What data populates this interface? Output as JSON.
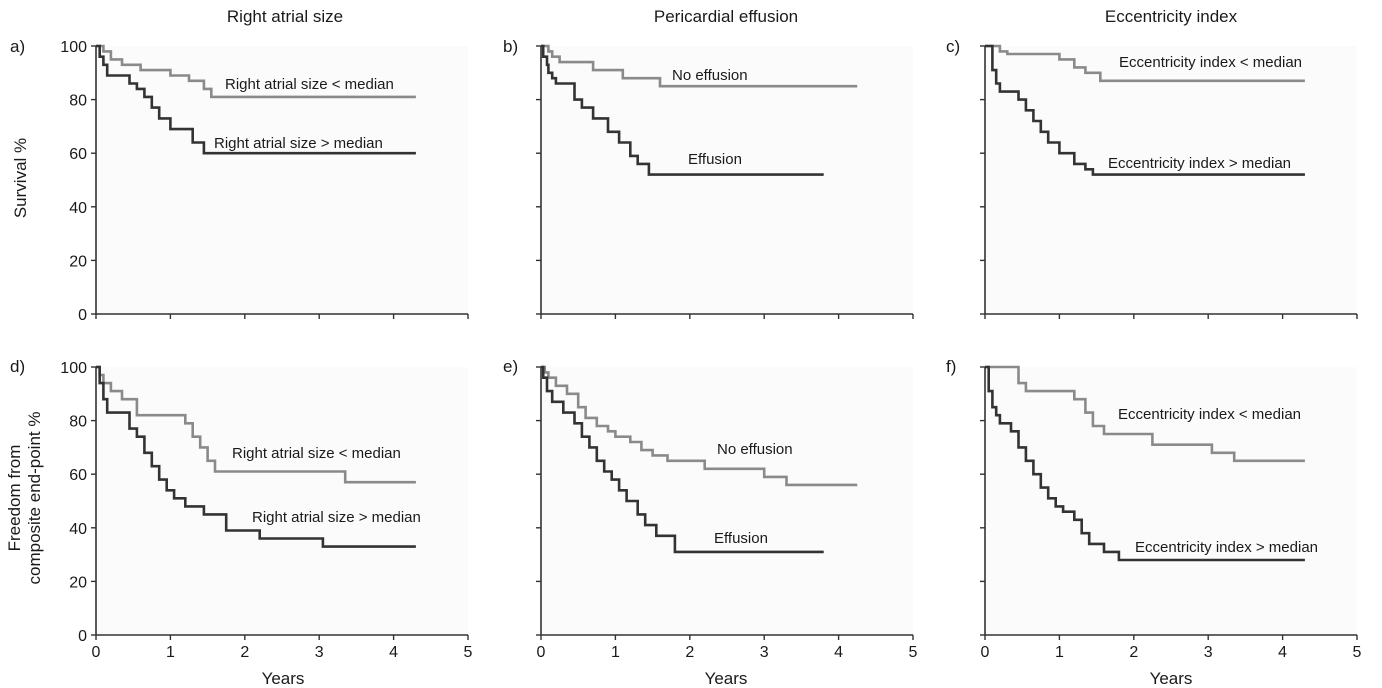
{
  "column_titles": [
    "Right atrial size",
    "Pericardial effusion",
    "Eccentricity index"
  ],
  "row_ylabels": [
    [
      "Survival %"
    ],
    [
      "Freedom from",
      "composite end-point %"
    ]
  ],
  "xlabel": "Years",
  "colors": {
    "median_low": "#8a8a8a",
    "median_high": "#333333",
    "axis": "#333333"
  },
  "chart_data": [
    {
      "type": "line",
      "panel": "a)",
      "row": 0,
      "col": 0,
      "xlim": [
        0,
        5
      ],
      "ylim": [
        0,
        100
      ],
      "xticks": [
        "0",
        "1",
        "2",
        "3",
        "4",
        "5"
      ],
      "yticks": [
        "0",
        "20",
        "40",
        "60",
        "80",
        "100"
      ],
      "show_yticklabels": true,
      "show_xticklabels": false,
      "series": [
        {
          "name": "Right atrial size < median",
          "color_key": "median_low",
          "x": [
            0,
            0.1,
            0.2,
            0.35,
            0.6,
            1.0,
            1.25,
            1.45,
            1.55,
            4.3
          ],
          "y": [
            100,
            98,
            95,
            93,
            91,
            89,
            87,
            84,
            81,
            81
          ]
        },
        {
          "name": "Right atrial size > median",
          "color_key": "median_high",
          "x": [
            0,
            0.05,
            0.1,
            0.15,
            0.25,
            0.45,
            0.55,
            0.65,
            0.75,
            0.85,
            1.0,
            1.3,
            1.45,
            4.3
          ],
          "y": [
            100,
            96,
            93,
            89,
            89,
            86,
            84,
            81,
            77,
            73,
            69,
            64,
            60,
            60
          ]
        }
      ]
    },
    {
      "type": "line",
      "panel": "b)",
      "row": 0,
      "col": 1,
      "xlim": [
        0,
        5
      ],
      "ylim": [
        0,
        100
      ],
      "xticks": [
        "0",
        "1",
        "2",
        "3",
        "4",
        "5"
      ],
      "yticks": [
        "0",
        "20",
        "40",
        "60",
        "80",
        "100"
      ],
      "show_yticklabels": false,
      "show_xticklabels": false,
      "series": [
        {
          "name": "No effusion",
          "color_key": "median_low",
          "x": [
            0,
            0.1,
            0.15,
            0.25,
            0.7,
            1.1,
            1.6,
            4.25
          ],
          "y": [
            100,
            98,
            96,
            94,
            91,
            88,
            85,
            85
          ]
        },
        {
          "name": "Effusion",
          "color_key": "median_high",
          "x": [
            0,
            0.03,
            0.08,
            0.1,
            0.15,
            0.2,
            0.45,
            0.55,
            0.7,
            0.9,
            1.05,
            1.2,
            1.3,
            1.45,
            3.8
          ],
          "y": [
            100,
            96,
            93,
            90,
            88,
            86,
            80,
            77,
            73,
            68,
            64,
            59,
            56,
            52,
            52
          ]
        }
      ]
    },
    {
      "type": "line",
      "panel": "c)",
      "row": 0,
      "col": 2,
      "xlim": [
        0,
        5
      ],
      "ylim": [
        0,
        100
      ],
      "xticks": [
        "0",
        "1",
        "2",
        "3",
        "4",
        "5"
      ],
      "yticks": [
        "0",
        "20",
        "40",
        "60",
        "80",
        "100"
      ],
      "show_yticklabels": false,
      "show_xticklabels": false,
      "series": [
        {
          "name": "Eccentricity index < median",
          "color_key": "median_low",
          "x": [
            0,
            0.2,
            0.3,
            1.0,
            1.2,
            1.35,
            1.55,
            4.3
          ],
          "y": [
            100,
            98,
            97,
            95,
            92,
            90,
            87,
            87
          ]
        },
        {
          "name": "Eccentricity index > median",
          "color_key": "median_high",
          "x": [
            0,
            0.1,
            0.15,
            0.2,
            0.35,
            0.45,
            0.55,
            0.65,
            0.75,
            0.85,
            1.0,
            1.2,
            1.35,
            1.45,
            4.3
          ],
          "y": [
            100,
            91,
            86,
            83,
            83,
            80,
            76,
            72,
            68,
            64,
            60,
            56,
            54,
            52,
            52
          ]
        }
      ]
    },
    {
      "type": "line",
      "panel": "d)",
      "row": 1,
      "col": 0,
      "xlim": [
        0,
        5
      ],
      "ylim": [
        0,
        100
      ],
      "xticks": [
        "0",
        "1",
        "2",
        "3",
        "4",
        "5"
      ],
      "yticks": [
        "0",
        "20",
        "40",
        "60",
        "80",
        "100"
      ],
      "show_yticklabels": true,
      "show_xticklabels": true,
      "series": [
        {
          "name": "Right atrial size < median",
          "color_key": "median_low",
          "x": [
            0,
            0.05,
            0.1,
            0.2,
            0.35,
            0.55,
            0.85,
            1.2,
            1.3,
            1.4,
            1.5,
            1.6,
            3.35,
            4.3
          ],
          "y": [
            100,
            97,
            94,
            91,
            88,
            82,
            82,
            79,
            74,
            70,
            65,
            61,
            57,
            57
          ]
        },
        {
          "name": "Right atrial size > median",
          "color_key": "median_high",
          "x": [
            0,
            0.05,
            0.1,
            0.15,
            0.25,
            0.45,
            0.55,
            0.65,
            0.75,
            0.85,
            0.95,
            1.05,
            1.2,
            1.45,
            1.75,
            2.2,
            3.05,
            4.3
          ],
          "y": [
            100,
            94,
            88,
            83,
            83,
            77,
            74,
            68,
            63,
            58,
            54,
            51,
            48,
            45,
            39,
            36,
            33,
            33
          ]
        }
      ]
    },
    {
      "type": "line",
      "panel": "e)",
      "row": 1,
      "col": 1,
      "xlim": [
        0,
        5
      ],
      "ylim": [
        0,
        100
      ],
      "xticks": [
        "0",
        "1",
        "2",
        "3",
        "4",
        "5"
      ],
      "yticks": [
        "0",
        "20",
        "40",
        "60",
        "80",
        "100"
      ],
      "show_yticklabels": false,
      "show_xticklabels": true,
      "series": [
        {
          "name": "No effusion",
          "color_key": "median_low",
          "x": [
            0,
            0.05,
            0.1,
            0.2,
            0.35,
            0.5,
            0.6,
            0.75,
            0.9,
            1.0,
            1.2,
            1.35,
            1.5,
            1.7,
            2.2,
            3.0,
            3.3,
            4.25
          ],
          "y": [
            100,
            98,
            96,
            93,
            90,
            85,
            81,
            78,
            76,
            74,
            72,
            69,
            67,
            65,
            62,
            59,
            56,
            56
          ]
        },
        {
          "name": "Effusion",
          "color_key": "median_high",
          "x": [
            0,
            0.03,
            0.08,
            0.15,
            0.3,
            0.45,
            0.55,
            0.65,
            0.75,
            0.85,
            0.95,
            1.05,
            1.15,
            1.3,
            1.4,
            1.55,
            1.8,
            3.8
          ],
          "y": [
            100,
            96,
            91,
            87,
            83,
            79,
            74,
            70,
            65,
            61,
            58,
            54,
            50,
            45,
            41,
            37,
            31,
            31
          ]
        }
      ]
    },
    {
      "type": "line",
      "panel": "f)",
      "row": 1,
      "col": 2,
      "xlim": [
        0,
        5
      ],
      "ylim": [
        0,
        100
      ],
      "xticks": [
        "0",
        "1",
        "2",
        "3",
        "4",
        "5"
      ],
      "yticks": [
        "0",
        "20",
        "40",
        "60",
        "80",
        "100"
      ],
      "show_yticklabels": false,
      "show_xticklabels": true,
      "series": [
        {
          "name": "Eccentricity index < median",
          "color_key": "median_low",
          "x": [
            0,
            0.45,
            0.55,
            1.2,
            1.35,
            1.45,
            1.6,
            2.25,
            3.05,
            3.35,
            4.3
          ],
          "y": [
            100,
            94,
            91,
            88,
            83,
            78,
            75,
            71,
            68,
            65,
            65
          ]
        },
        {
          "name": "Eccentricity index > median",
          "color_key": "median_high",
          "x": [
            0,
            0.05,
            0.1,
            0.15,
            0.2,
            0.35,
            0.45,
            0.55,
            0.65,
            0.75,
            0.85,
            0.95,
            1.05,
            1.2,
            1.3,
            1.4,
            1.6,
            1.8,
            4.3
          ],
          "y": [
            100,
            91,
            85,
            82,
            79,
            76,
            70,
            65,
            60,
            55,
            51,
            48,
            46,
            43,
            38,
            34,
            31,
            28,
            28
          ]
        }
      ]
    }
  ]
}
